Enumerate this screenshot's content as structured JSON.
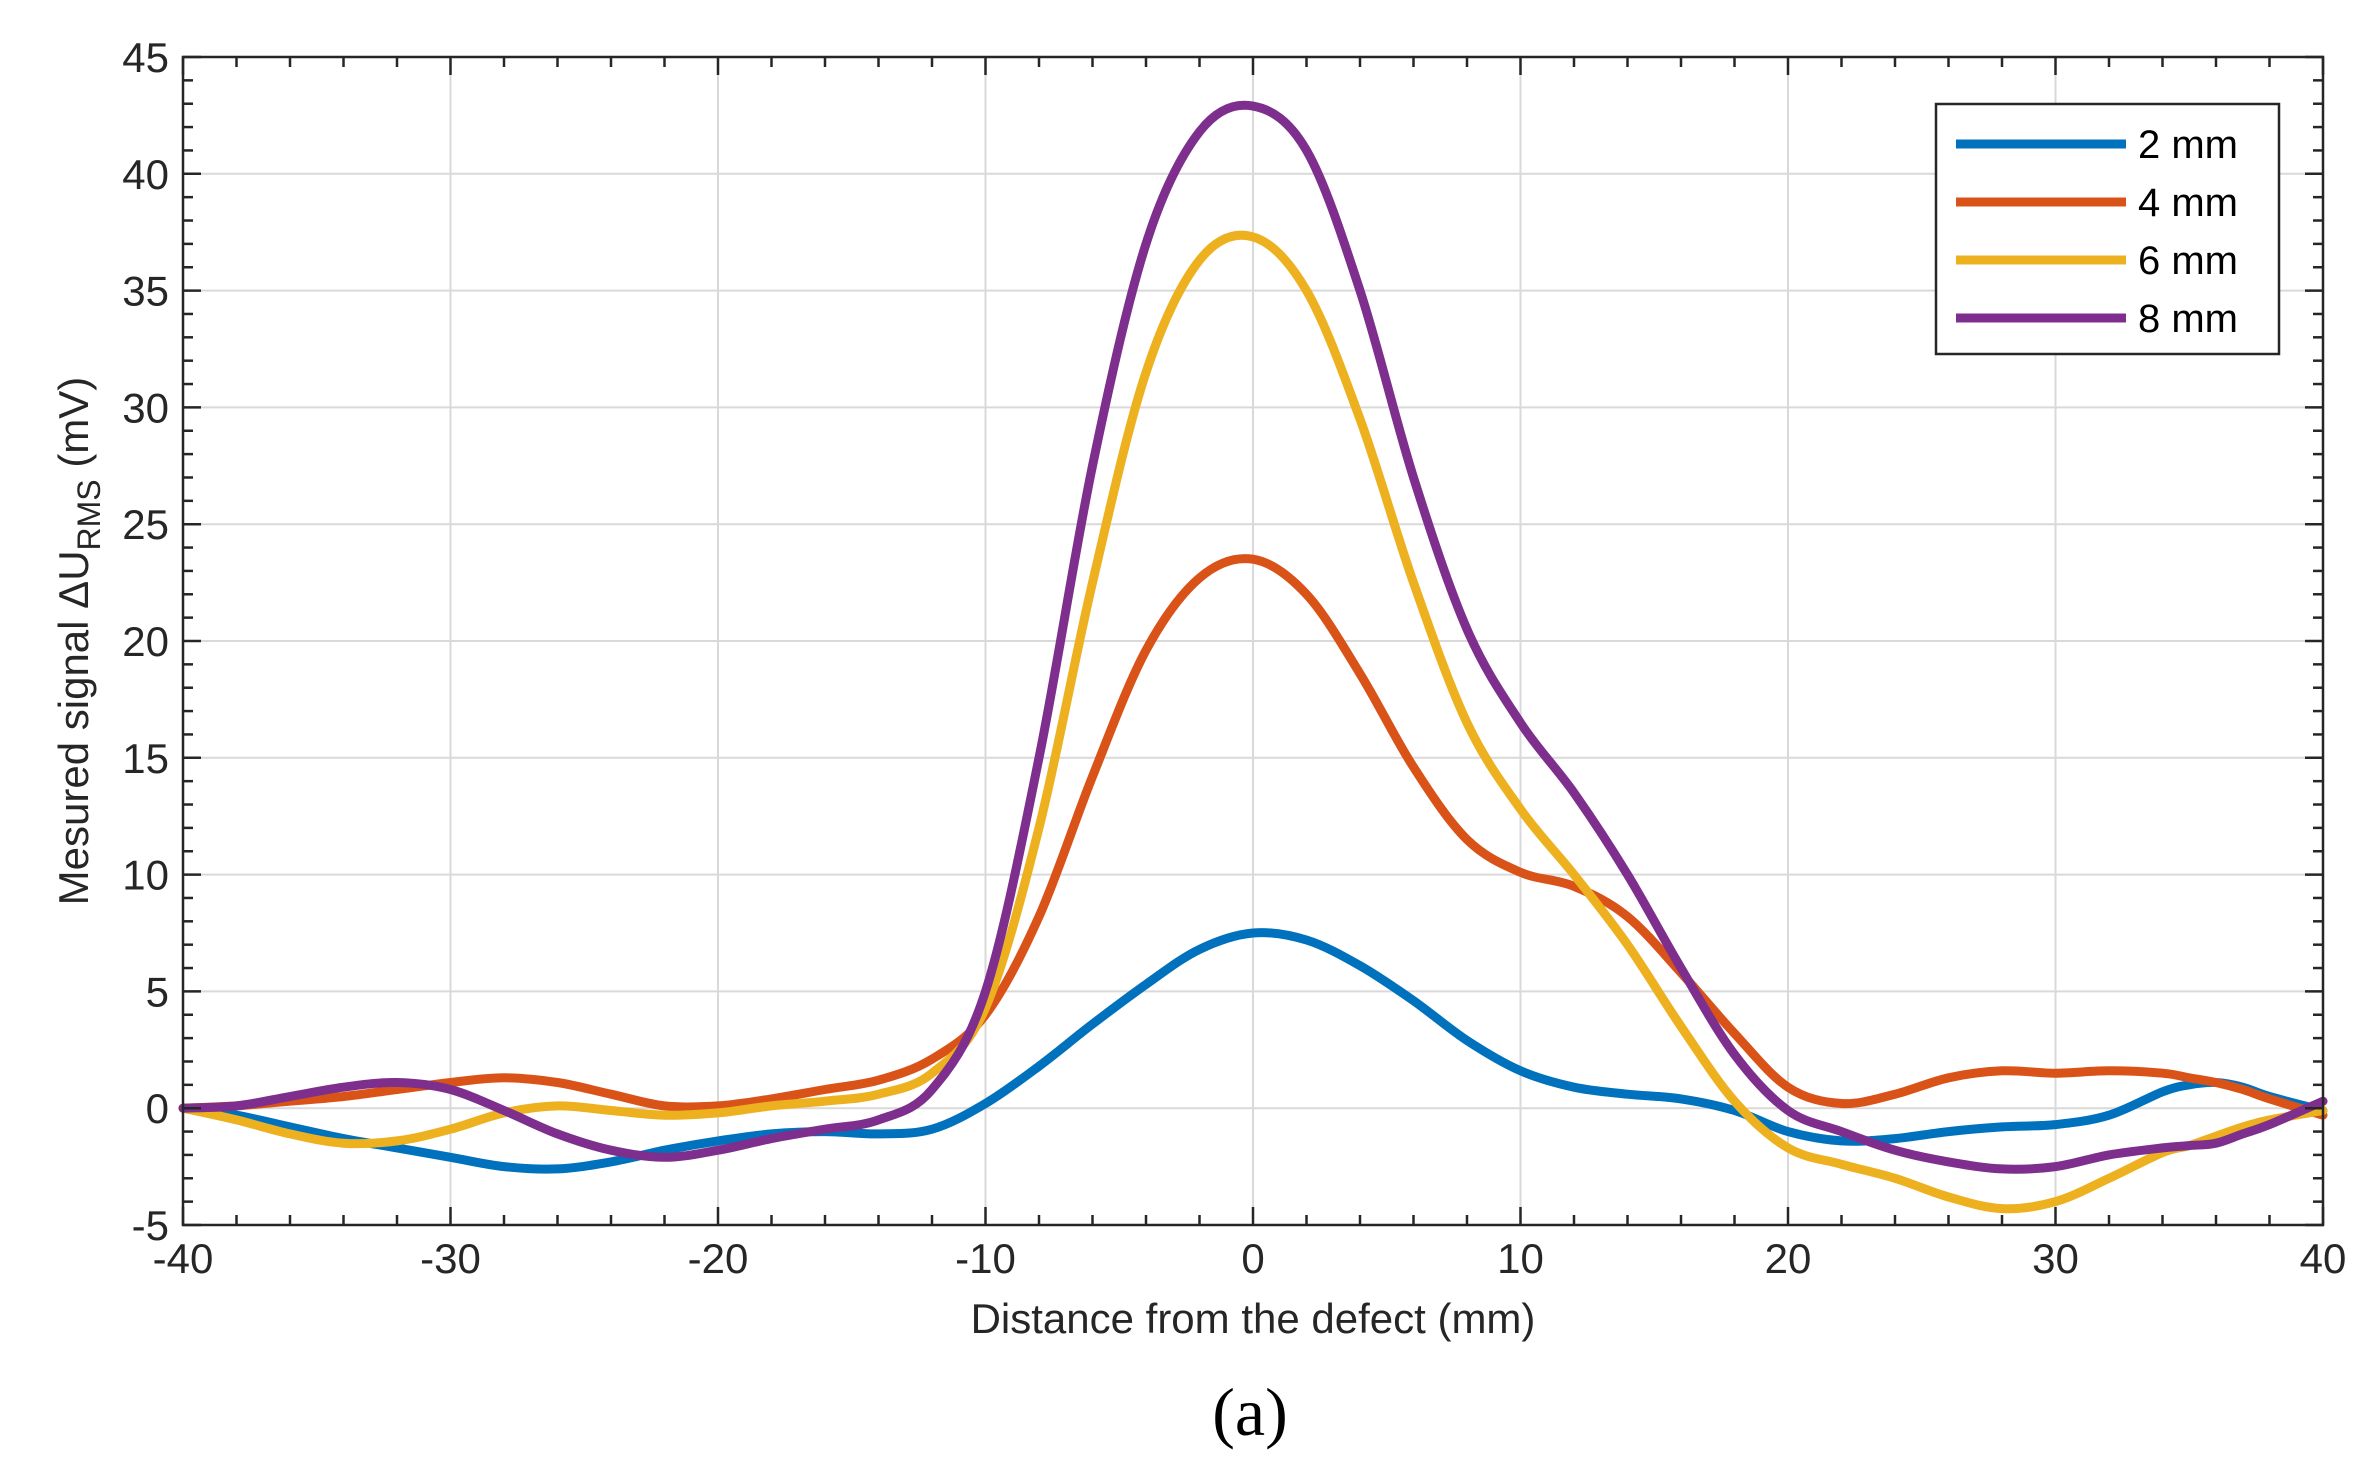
{
  "chart_data": {
    "type": "line",
    "title": "",
    "xlabel": "Distance from the defect (mm)",
    "ylabel_prefix": "Mesured signal ΔU",
    "ylabel_subscript": "RMS",
    "ylabel_suffix": " (mV)",
    "xlim": [
      -40,
      40
    ],
    "ylim": [
      -5,
      45
    ],
    "xticks": [
      -40,
      -30,
      -20,
      -10,
      0,
      10,
      20,
      30,
      40
    ],
    "xtick_labels": [
      "-40",
      "-30",
      "-20",
      "-10",
      "0",
      "10",
      "20",
      "30",
      "40"
    ],
    "yticks": [
      -5,
      0,
      5,
      10,
      15,
      20,
      25,
      30,
      35,
      40,
      45
    ],
    "ytick_labels": [
      "-5",
      "0",
      "5",
      "10",
      "15",
      "20",
      "25",
      "30",
      "35",
      "40",
      "45"
    ],
    "grid": true,
    "legend_position": "top-right",
    "caption": "(a)",
    "series": [
      {
        "name": "2 mm",
        "color": "#0072BD",
        "x": [
          -40,
          -38,
          -36,
          -34,
          -32,
          -30,
          -28,
          -26,
          -24,
          -22,
          -20,
          -18,
          -16,
          -14,
          -12,
          -10,
          -8,
          -6,
          -4,
          -2,
          0,
          2,
          4,
          6,
          8,
          10,
          12,
          14,
          16,
          18,
          20,
          22,
          24,
          26,
          28,
          30,
          32,
          34,
          35,
          36,
          37,
          38,
          40
        ],
        "y": [
          0,
          -0.3,
          -0.8,
          -1.3,
          -1.7,
          -2.1,
          -2.5,
          -2.6,
          -2.3,
          -1.8,
          -1.4,
          -1.1,
          -1.0,
          -1.1,
          -0.9,
          0.2,
          1.8,
          3.6,
          5.3,
          6.8,
          7.5,
          7.2,
          6.1,
          4.6,
          2.9,
          1.6,
          0.9,
          0.6,
          0.4,
          -0.1,
          -1.0,
          -1.4,
          -1.3,
          -1.0,
          -0.8,
          -0.7,
          -0.3,
          0.7,
          1.0,
          1.1,
          0.9,
          0.5,
          -0.1
        ]
      },
      {
        "name": "4 mm",
        "color": "#D95319",
        "x": [
          -40,
          -38,
          -36,
          -34,
          -32,
          -30,
          -28,
          -26,
          -24,
          -22,
          -20,
          -18,
          -16,
          -14,
          -12,
          -10,
          -8,
          -6,
          -4,
          -2,
          0,
          2,
          4,
          6,
          8,
          10,
          12,
          14,
          16,
          18,
          20,
          22,
          24,
          26,
          28,
          30,
          32,
          34,
          35,
          36,
          37,
          38,
          40
        ],
        "y": [
          0,
          0.1,
          0.3,
          0.5,
          0.8,
          1.1,
          1.3,
          1.1,
          0.6,
          0.1,
          0.1,
          0.4,
          0.8,
          1.2,
          2.1,
          4.0,
          8.2,
          14.2,
          19.6,
          22.7,
          23.5,
          22.0,
          18.6,
          14.6,
          11.5,
          10.1,
          9.5,
          8.2,
          5.8,
          3.2,
          0.9,
          0.2,
          0.6,
          1.3,
          1.6,
          1.5,
          1.6,
          1.5,
          1.3,
          1.1,
          0.8,
          0.4,
          -0.3
        ]
      },
      {
        "name": "6 mm",
        "color": "#EDB120",
        "x": [
          -40,
          -38,
          -36,
          -34,
          -32,
          -30,
          -28,
          -26,
          -24,
          -22,
          -20,
          -18,
          -16,
          -14,
          -12,
          -10,
          -8,
          -6,
          -4,
          -2,
          0,
          2,
          4,
          6,
          8,
          10,
          12,
          14,
          16,
          18,
          20,
          22,
          24,
          26,
          28,
          30,
          32,
          34,
          35,
          36,
          37,
          38,
          40
        ],
        "y": [
          0,
          -0.5,
          -1.1,
          -1.5,
          -1.4,
          -0.9,
          -0.2,
          0.1,
          -0.1,
          -0.3,
          -0.2,
          0.1,
          0.3,
          0.6,
          1.5,
          4.3,
          12.0,
          22.5,
          31.5,
          36.3,
          37.3,
          35.0,
          29.5,
          22.5,
          16.5,
          12.8,
          10.0,
          7.0,
          3.5,
          0.3,
          -1.7,
          -2.4,
          -3.0,
          -3.8,
          -4.3,
          -4.0,
          -3.0,
          -1.9,
          -1.6,
          -1.2,
          -0.8,
          -0.5,
          -0.1
        ]
      },
      {
        "name": "8 mm",
        "color": "#7E2F8E",
        "x": [
          -40,
          -38,
          -36,
          -34,
          -32,
          -30,
          -28,
          -26,
          -24,
          -22,
          -20,
          -18,
          -16,
          -14,
          -12,
          -10,
          -8,
          -6,
          -4,
          -2,
          0,
          2,
          4,
          6,
          8,
          10,
          12,
          14,
          16,
          18,
          20,
          22,
          24,
          26,
          28,
          30,
          32,
          34,
          35,
          36,
          37,
          38,
          40
        ],
        "y": [
          0,
          0.1,
          0.5,
          0.9,
          1.1,
          0.8,
          -0.1,
          -1.1,
          -1.8,
          -2.1,
          -1.8,
          -1.3,
          -0.9,
          -0.5,
          0.8,
          5.0,
          15.0,
          27.5,
          37.0,
          41.8,
          42.9,
          41.0,
          35.0,
          27.0,
          20.5,
          16.5,
          13.5,
          10.0,
          6.0,
          2.3,
          -0.1,
          -1.0,
          -1.8,
          -2.3,
          -2.6,
          -2.5,
          -2.0,
          -1.7,
          -1.6,
          -1.5,
          -1.1,
          -0.7,
          0.3
        ]
      }
    ]
  }
}
